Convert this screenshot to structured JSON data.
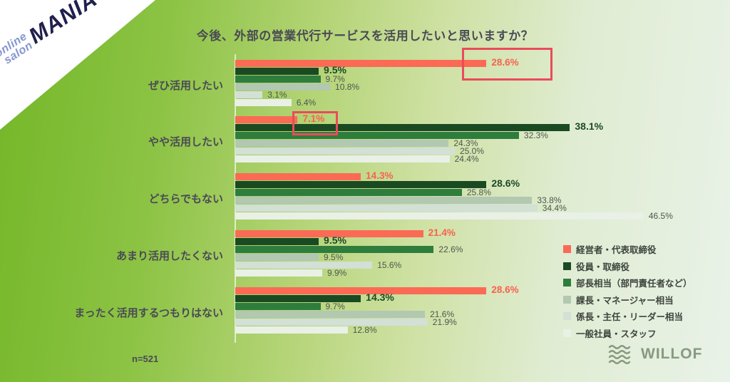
{
  "title": "今後、外部の営業代行サービスを活用したいと思いますか？",
  "sample_size_label": "n=521",
  "corner_logo": {
    "line1": "online",
    "line2": "salon",
    "line3": "MANIA"
  },
  "brand": {
    "name": "WILLOF"
  },
  "chart_data": {
    "type": "bar",
    "orientation": "horizontal",
    "unit": "%",
    "xlim": [
      0,
      50
    ],
    "grid": false,
    "legend_position": "right-bottom",
    "title": "今後、外部の営業代行サービスを活用したいと思いますか？",
    "categories": [
      "ぜひ活用したい",
      "やや活用したい",
      "どちらでもない",
      "あまり活用したくない",
      "まったく活用するつもりはない"
    ],
    "series": [
      {
        "name": "経営者・代表取締役",
        "color": "#fb6a55",
        "value_label_color": "#f8624e",
        "values": [
          28.6,
          7.1,
          14.3,
          21.4,
          28.6
        ]
      },
      {
        "name": "役員・取締役",
        "color": "#1a4a22",
        "value_label_color": "#1c4a26",
        "values": [
          9.5,
          38.1,
          28.6,
          9.5,
          14.3
        ]
      },
      {
        "name": "部長相当（部門責任者など）",
        "color": "#2e7d3c",
        "value_label_color": "#4d574d",
        "values": [
          9.7,
          32.3,
          25.8,
          22.6,
          9.7
        ]
      },
      {
        "name": "課長・マネージャー相当",
        "color": "#b2c8b0",
        "value_label_color": "#4d574d",
        "values": [
          10.8,
          24.3,
          33.8,
          9.5,
          21.6
        ]
      },
      {
        "name": "係長・主任・リーダー相当",
        "color": "#d2e0d5",
        "value_label_color": "#4d574d",
        "values": [
          3.1,
          25.0,
          34.4,
          15.6,
          21.9
        ]
      },
      {
        "name": "一般社員・スタッフ",
        "color": "#e9f0e6",
        "value_label_color": "#4d574d",
        "values": [
          6.4,
          24.4,
          46.5,
          9.9,
          12.8
        ]
      }
    ],
    "highlights": [
      {
        "category_index": 0,
        "series_index": 0,
        "label": "28.6%",
        "rect": {
          "x": 648,
          "y": 67,
          "w": 127,
          "h": 46
        },
        "color": "#ea4b5b"
      },
      {
        "category_index": 1,
        "series_index": 0,
        "label": "7.1%",
        "rect": {
          "x": 410,
          "y": 156,
          "w": 64,
          "h": 34
        },
        "color": "#ea4b5b"
      }
    ]
  }
}
